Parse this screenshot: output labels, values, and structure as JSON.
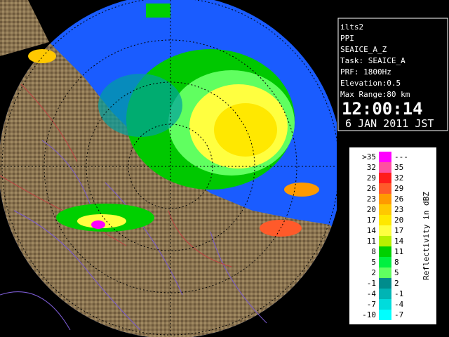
{
  "header": {
    "station": "ilts2",
    "mode": "PPI",
    "product": "SEAICE_A_Z",
    "task": "Task: SEAICE_A",
    "prf": "PRF: 1800Hz",
    "elevation": "Elevation:0.5",
    "max_range": "Max Range:80 km",
    "time": "12:00:14",
    "date": "6 JAN 2011 JST"
  },
  "legend": {
    "title": "Reflectivity in dBZ",
    "rows": [
      {
        "low": ">35",
        "high": "---",
        "color": "#ff00ff"
      },
      {
        "low": "32",
        "high": "35",
        "color": "#ff50a0"
      },
      {
        "low": "29",
        "high": "32",
        "color": "#ff1c1c"
      },
      {
        "low": "26",
        "high": "29",
        "color": "#ff5a2a"
      },
      {
        "low": "23",
        "high": "26",
        "color": "#ff9a00"
      },
      {
        "low": "20",
        "high": "23",
        "color": "#ffc800"
      },
      {
        "low": "17",
        "high": "20",
        "color": "#ffe800"
      },
      {
        "low": "14",
        "high": "17",
        "color": "#ffff40"
      },
      {
        "low": "11",
        "high": "14",
        "color": "#b8f000"
      },
      {
        "low": "8",
        "high": "11",
        "color": "#00d000"
      },
      {
        "low": "5",
        "high": "8",
        "color": "#00f040"
      },
      {
        "low": "2",
        "high": "5",
        "color": "#60ff60"
      },
      {
        "low": "-1",
        "high": "2",
        "color": "#008c8c"
      },
      {
        "low": "-4",
        "high": "-1",
        "color": "#00b4b4"
      },
      {
        "low": "-7",
        "high": "-4",
        "color": "#00dcdc"
      },
      {
        "low": "-10",
        "high": "-7",
        "color": "#00ffff"
      }
    ]
  }
}
